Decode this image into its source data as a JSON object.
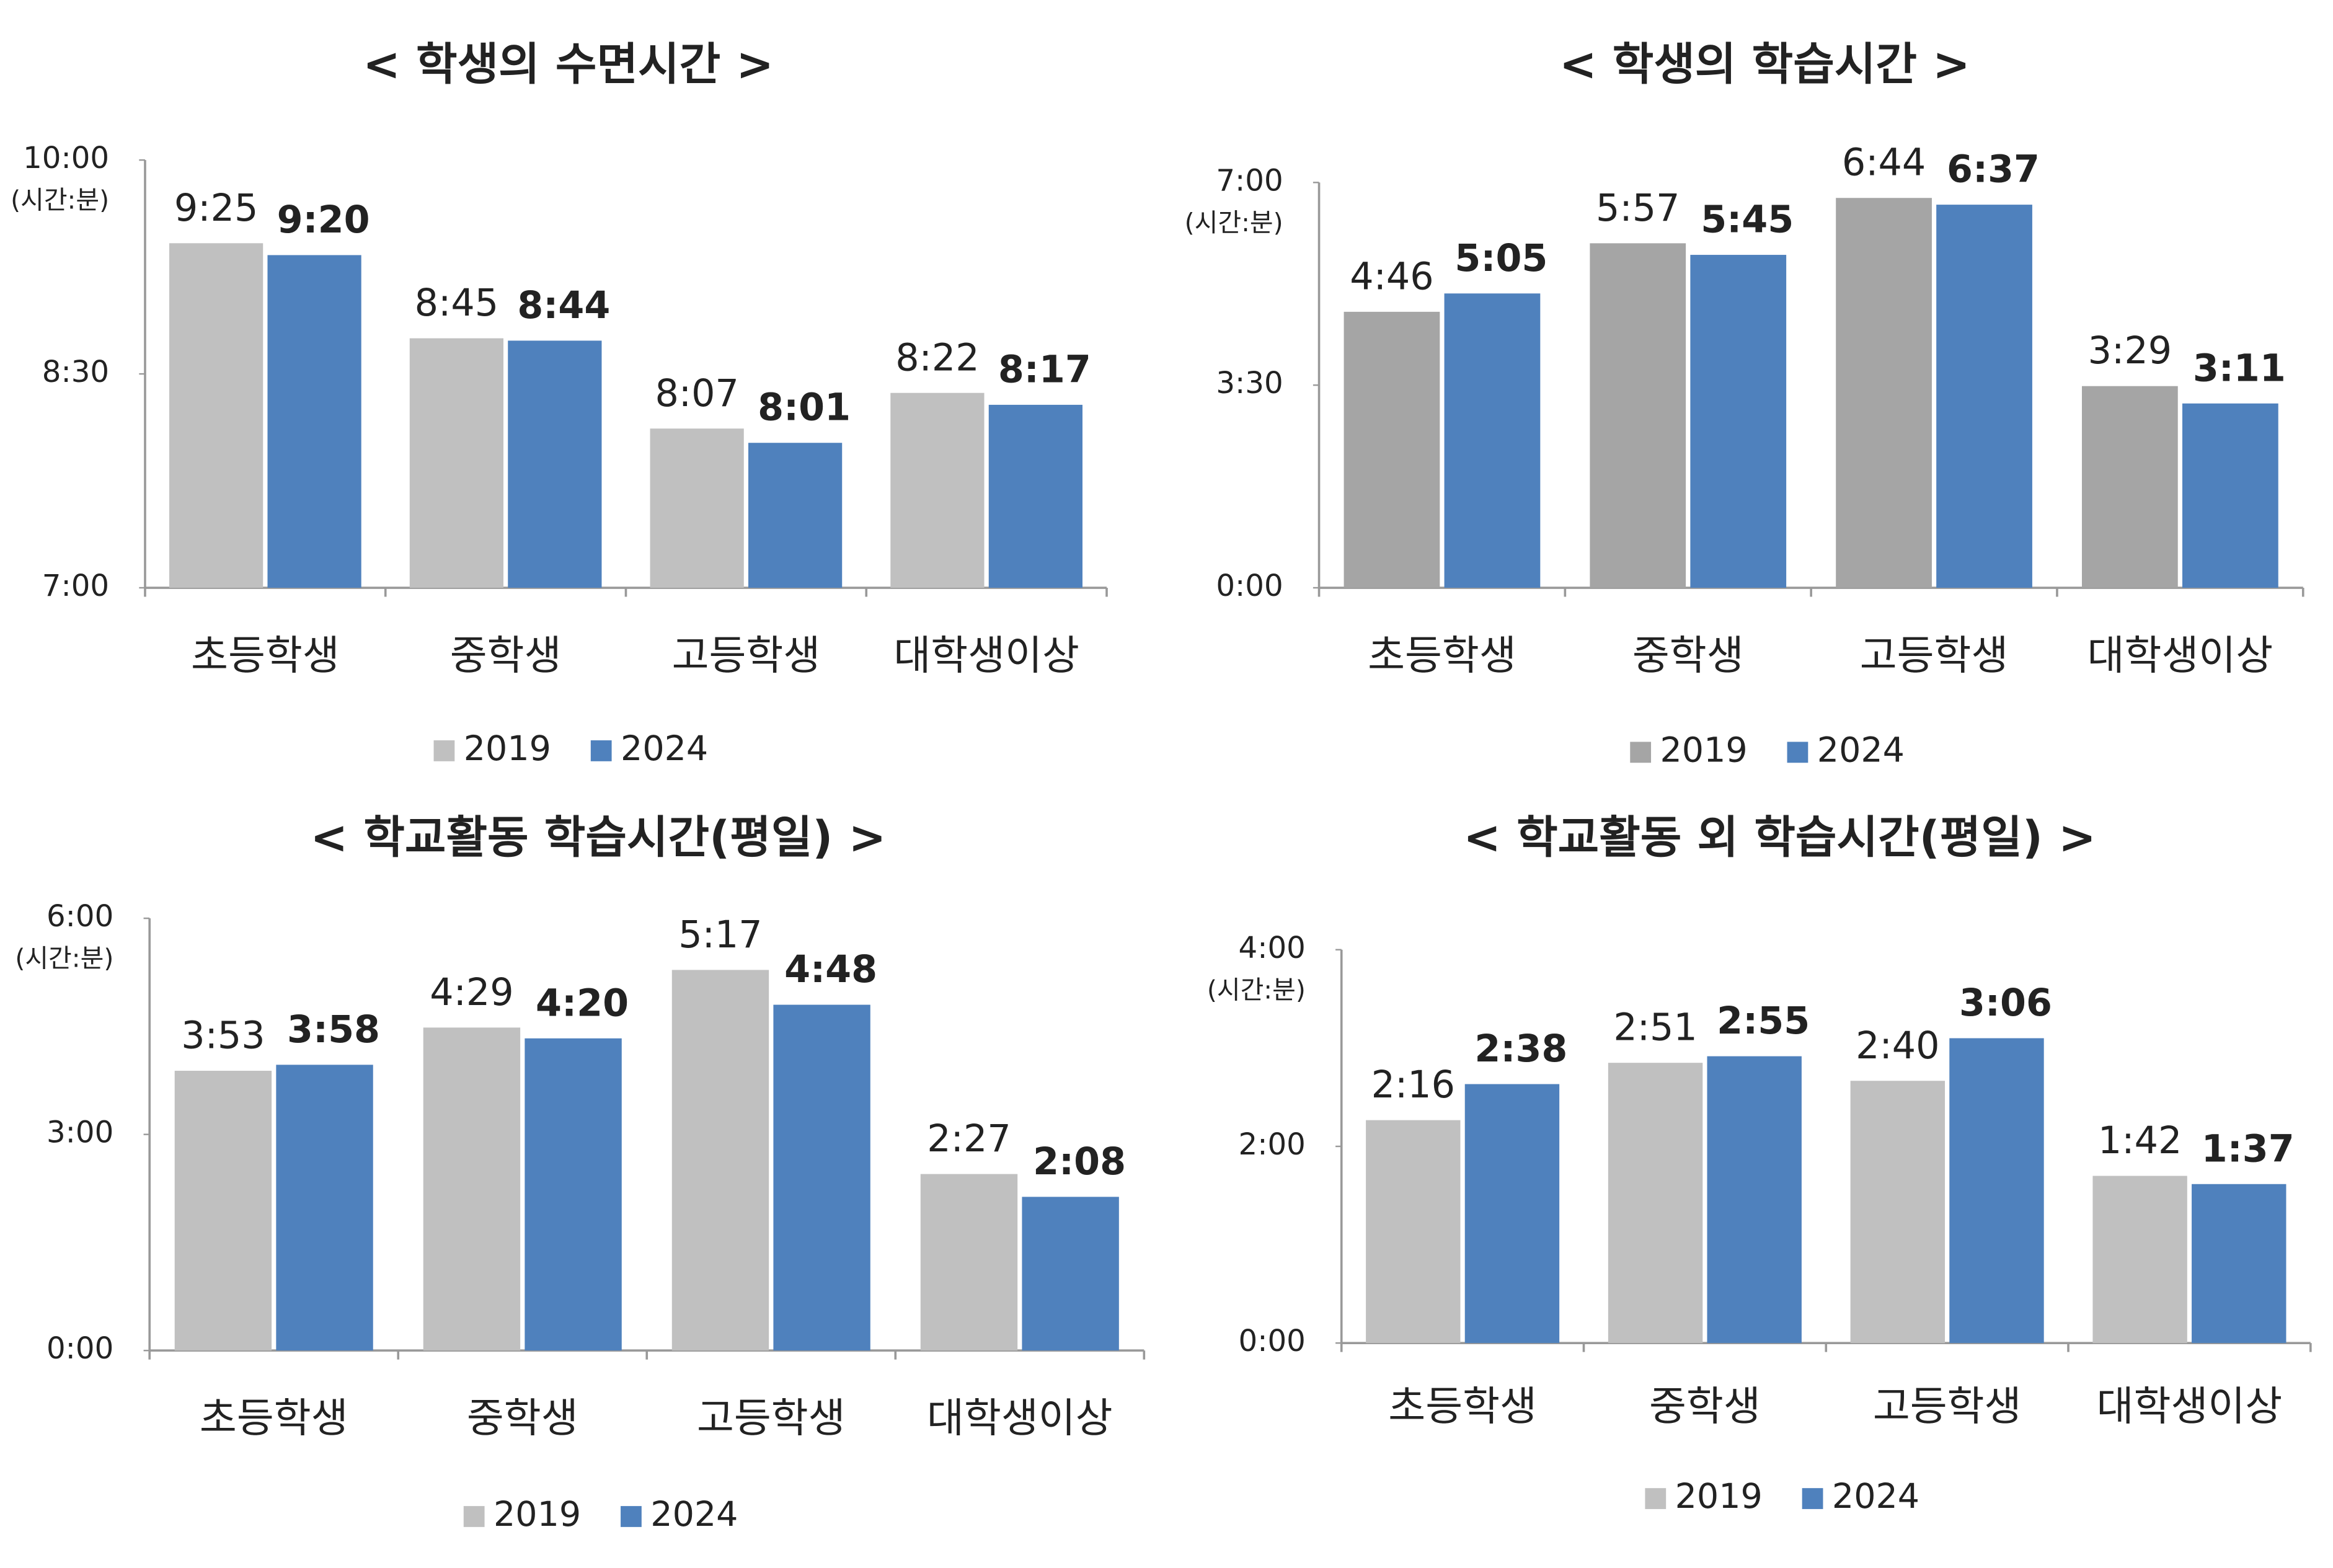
{
  "chart_data": [
    {
      "type": "bar",
      "title": "< 학생의 수면시간 >",
      "y_axis_label": "(시간:분)",
      "categories": [
        "초등학생",
        "중학생",
        "고등학생",
        "대학생이상"
      ],
      "series": [
        {
          "name": "2019",
          "color": "#c0c0c0",
          "values": [
            565,
            525,
            487,
            502
          ],
          "value_labels": [
            "9:25",
            "8:45",
            "8:07",
            "8:22"
          ]
        },
        {
          "name": "2024",
          "color": "#4f81bd",
          "values": [
            560,
            524,
            481,
            497
          ],
          "value_labels": [
            "9:20",
            "8:44",
            "8:01",
            "8:17"
          ]
        }
      ],
      "ylim": [
        420,
        600
      ],
      "yticks": [
        {
          "value": 420,
          "label": "7:00"
        },
        {
          "value": 510,
          "label": "8:30"
        },
        {
          "value": 600,
          "label": "10:00"
        }
      ],
      "legend": "bottom"
    },
    {
      "type": "bar",
      "title": "< 학생의 학습시간 >",
      "y_axis_label": "(시간:분)",
      "categories": [
        "초등학생",
        "중학생",
        "고등학생",
        "대학생이상"
      ],
      "series": [
        {
          "name": "2019",
          "color": "#a5a5a5",
          "values": [
            286,
            357,
            404,
            209
          ],
          "value_labels": [
            "4:46",
            "5:57",
            "6:44",
            "3:29"
          ]
        },
        {
          "name": "2024",
          "color": "#4f81bd",
          "values": [
            305,
            345,
            397,
            191
          ],
          "value_labels": [
            "5:05",
            "5:45",
            "6:37",
            "3:11"
          ]
        }
      ],
      "ylim": [
        0,
        420
      ],
      "yticks": [
        {
          "value": 0,
          "label": "0:00"
        },
        {
          "value": 210,
          "label": "3:30"
        },
        {
          "value": 420,
          "label": "7:00"
        }
      ],
      "legend": "bottom"
    },
    {
      "type": "bar",
      "title": "< 학교활동 학습시간(평일) >",
      "y_axis_label": "(시간:분)",
      "categories": [
        "초등학생",
        "중학생",
        "고등학생",
        "대학생이상"
      ],
      "series": [
        {
          "name": "2019",
          "color": "#c0c0c0",
          "values": [
            233,
            269,
            317,
            147
          ],
          "value_labels": [
            "3:53",
            "4:29",
            "5:17",
            "2:27"
          ]
        },
        {
          "name": "2024",
          "color": "#4f81bd",
          "values": [
            238,
            260,
            288,
            128
          ],
          "value_labels": [
            "3:58",
            "4:20",
            "4:48",
            "2:08"
          ]
        }
      ],
      "ylim": [
        0,
        360
      ],
      "yticks": [
        {
          "value": 0,
          "label": "0:00"
        },
        {
          "value": 180,
          "label": "3:00"
        },
        {
          "value": 360,
          "label": "6:00"
        }
      ],
      "legend": "bottom"
    },
    {
      "type": "bar",
      "title": "< 학교활동 외 학습시간(평일) >",
      "y_axis_label": "(시간:분)",
      "categories": [
        "초등학생",
        "중학생",
        "고등학생",
        "대학생이상"
      ],
      "series": [
        {
          "name": "2019",
          "color": "#c0c0c0",
          "values": [
            136,
            171,
            160,
            102
          ],
          "value_labels": [
            "2:16",
            "2:51",
            "2:40",
            "1:42"
          ]
        },
        {
          "name": "2024",
          "color": "#4f81bd",
          "values": [
            158,
            175,
            186,
            97
          ],
          "value_labels": [
            "2:38",
            "2:55",
            "3:06",
            "1:37"
          ]
        }
      ],
      "ylim": [
        0,
        240
      ],
      "yticks": [
        {
          "value": 0,
          "label": "0:00"
        },
        {
          "value": 120,
          "label": "2:00"
        },
        {
          "value": 240,
          "label": "4:00"
        }
      ],
      "legend": "bottom"
    }
  ]
}
